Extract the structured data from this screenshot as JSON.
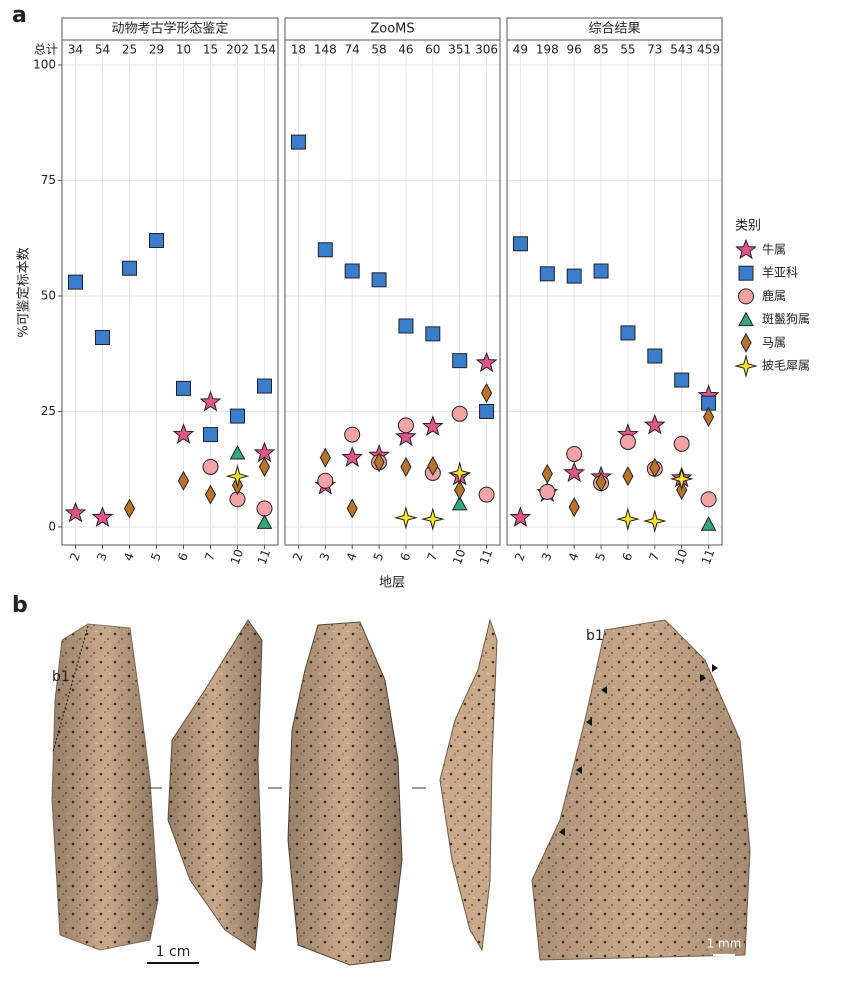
{
  "panel_labels": [
    "a",
    "b"
  ],
  "chart_data": {
    "type": "scatter",
    "ylabel": "%可鉴定标本数",
    "xlabel": "地层",
    "legend_title": "类别",
    "totals_label": "总计",
    "legend": "right",
    "grid": true,
    "categories": [
      "2",
      "3",
      "4",
      "5",
      "6",
      "7",
      "10",
      "11"
    ],
    "ylim": [
      -3.9,
      105.4
    ],
    "yticks": [
      0,
      25,
      50,
      75,
      100
    ],
    "series": [
      {
        "name": "牛属",
        "color": "#e0558a",
        "marker": "star"
      },
      {
        "name": "羊亚科",
        "color": "#3a7dcc",
        "marker": "square"
      },
      {
        "name": "鹿属",
        "color": "#f2a3a6",
        "marker": "circle"
      },
      {
        "name": "斑鬣狗属",
        "color": "#35a679",
        "marker": "triangle"
      },
      {
        "name": "马属",
        "color": "#b9742b",
        "marker": "diamond"
      },
      {
        "name": "披毛犀属",
        "color": "#f6e62c",
        "marker": "star4"
      }
    ],
    "facets": [
      {
        "title": "动物考古学形态鉴定",
        "totals": [
          34,
          54,
          25,
          29,
          10,
          15,
          202,
          154
        ],
        "values": [
          [
            3,
            2,
            null,
            null,
            20,
            27,
            null,
            16
          ],
          [
            53,
            41,
            56,
            62,
            30,
            20,
            24,
            30.5
          ],
          [
            null,
            null,
            null,
            null,
            null,
            13,
            6,
            4
          ],
          [
            null,
            null,
            null,
            null,
            null,
            null,
            16,
            1
          ],
          [
            null,
            null,
            4,
            null,
            10,
            7,
            9,
            13
          ],
          [
            null,
            null,
            null,
            null,
            null,
            null,
            11,
            null
          ]
        ]
      },
      {
        "title": "ZooMS",
        "totals": [
          18,
          148,
          74,
          58,
          46,
          60,
          351,
          306
        ],
        "values": [
          [
            null,
            9,
            15,
            15.5,
            19.5,
            21.7,
            11,
            35.5
          ],
          [
            83.3,
            60,
            55.4,
            53.5,
            43.5,
            41.8,
            36,
            25
          ],
          [
            null,
            10,
            20,
            14,
            22,
            11.7,
            24.5,
            7
          ],
          [
            null,
            null,
            null,
            null,
            null,
            null,
            5,
            null
          ],
          [
            null,
            15,
            4,
            14,
            13,
            13.2,
            8,
            29
          ],
          [
            null,
            null,
            null,
            null,
            2,
            1.7,
            11.7,
            null
          ]
        ]
      },
      {
        "title": "综合结果",
        "totals": [
          49,
          198,
          96,
          85,
          55,
          73,
          543,
          459
        ],
        "values": [
          [
            2,
            7.4,
            11.7,
            10.8,
            20,
            22,
            10.6,
            28.4
          ],
          [
            61.3,
            54.8,
            54.3,
            55.4,
            42,
            37,
            31.8,
            26.8
          ],
          [
            null,
            7.6,
            15.8,
            9.5,
            18.4,
            12.6,
            18,
            6
          ],
          [
            null,
            null,
            null,
            null,
            null,
            null,
            null,
            0.6
          ],
          [
            null,
            11.5,
            4.3,
            9.7,
            11,
            12.8,
            8,
            23.8
          ],
          [
            null,
            null,
            null,
            null,
            1.7,
            1.3,
            10.4,
            null
          ]
        ]
      }
    ]
  },
  "photos": {
    "labels": [
      "b1",
      "b1"
    ],
    "scale_bars": [
      "1 cm",
      "1 mm"
    ]
  }
}
